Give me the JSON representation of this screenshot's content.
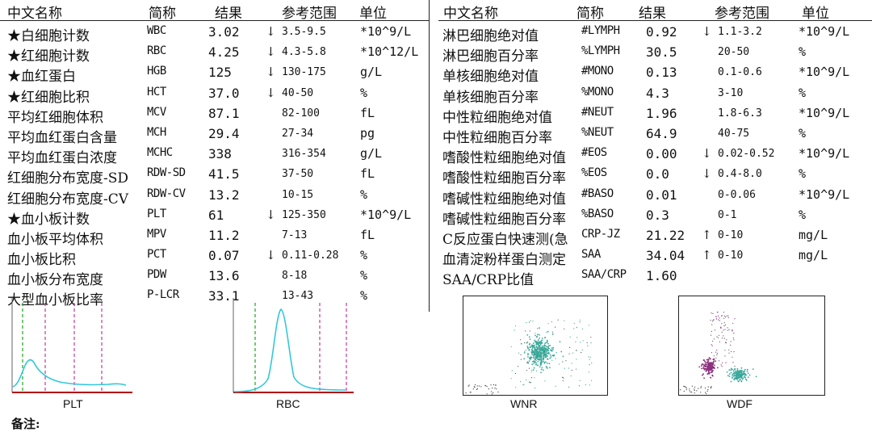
{
  "headers": {
    "name": "中文名称",
    "abbr": "简称",
    "result": "结果",
    "ref": "参考范围",
    "unit": "单位"
  },
  "left_rows": [
    {
      "name": "★白细胞计数",
      "abbr": "WBC",
      "result": "3.02",
      "flag": "↓",
      "ref": "3.5-9.5",
      "unit": "*10^9/L"
    },
    {
      "name": "★红细胞计数",
      "abbr": "RBC",
      "result": "4.25",
      "flag": "↓",
      "ref": "4.3-5.8",
      "unit": "*10^12/L"
    },
    {
      "name": "★血红蛋白",
      "abbr": "HGB",
      "result": "125",
      "flag": "↓",
      "ref": "130-175",
      "unit": "g/L"
    },
    {
      "name": "★红细胞比积",
      "abbr": "HCT",
      "result": "37.0",
      "flag": "↓",
      "ref": "40-50",
      "unit": "%"
    },
    {
      "name": "平均红细胞体积",
      "abbr": "MCV",
      "result": "87.1",
      "flag": "",
      "ref": "82-100",
      "unit": "fL"
    },
    {
      "name": "平均血红蛋白含量",
      "abbr": "MCH",
      "result": "29.4",
      "flag": "",
      "ref": "27-34",
      "unit": "pg"
    },
    {
      "name": "平均血红蛋白浓度",
      "abbr": "MCHC",
      "result": "338",
      "flag": "",
      "ref": "316-354",
      "unit": "g/L"
    },
    {
      "name": "红细胞分布宽度-SD",
      "abbr": "RDW-SD",
      "result": "41.5",
      "flag": "",
      "ref": "37-50",
      "unit": "fL"
    },
    {
      "name": "红细胞分布宽度-CV",
      "abbr": "RDW-CV",
      "result": "13.2",
      "flag": "",
      "ref": "10-15",
      "unit": "%"
    },
    {
      "name": "★血小板计数",
      "abbr": "PLT",
      "result": "61",
      "flag": "↓",
      "ref": "125-350",
      "unit": "*10^9/L"
    },
    {
      "name": "血小板平均体积",
      "abbr": "MPV",
      "result": "11.2",
      "flag": "",
      "ref": "7-13",
      "unit": "fL"
    },
    {
      "name": "血小板比积",
      "abbr": "PCT",
      "result": "0.07",
      "flag": "↓",
      "ref": "0.11-0.28",
      "unit": "%"
    },
    {
      "name": "血小板分布宽度",
      "abbr": "PDW",
      "result": "13.6",
      "flag": "",
      "ref": "8-18",
      "unit": "%"
    },
    {
      "name": "大型血小板比率",
      "abbr": "P-LCR",
      "result": "33.1",
      "flag": "",
      "ref": "13-43",
      "unit": "%"
    }
  ],
  "right_rows": [
    {
      "name": "淋巴细胞绝对值",
      "abbr": "#LYMPH",
      "result": "0.92",
      "flag": "↓",
      "ref": "1.1-3.2",
      "unit": "*10^9/L"
    },
    {
      "name": "淋巴细胞百分率",
      "abbr": "%LYMPH",
      "result": "30.5",
      "flag": "",
      "ref": "20-50",
      "unit": "%"
    },
    {
      "name": "单核细胞绝对值",
      "abbr": "#MONO",
      "result": "0.13",
      "flag": "",
      "ref": "0.1-0.6",
      "unit": "*10^9/L"
    },
    {
      "name": "单核细胞百分率",
      "abbr": "%MONO",
      "result": "4.3",
      "flag": "",
      "ref": "3-10",
      "unit": "%"
    },
    {
      "name": "中性粒细胞绝对值",
      "abbr": "#NEUT",
      "result": "1.96",
      "flag": "",
      "ref": "1.8-6.3",
      "unit": "*10^9/L"
    },
    {
      "name": "中性粒细胞百分率",
      "abbr": "%NEUT",
      "result": "64.9",
      "flag": "",
      "ref": "40-75",
      "unit": "%"
    },
    {
      "name": "嗜酸性粒细胞绝对值",
      "abbr": "#EOS",
      "result": "0.00",
      "flag": "↓",
      "ref": "0.02-0.52",
      "unit": "*10^9/L"
    },
    {
      "name": "嗜酸性粒细胞百分率",
      "abbr": "%EOS",
      "result": "0.0",
      "flag": "↓",
      "ref": "0.4-8.0",
      "unit": "%"
    },
    {
      "name": "嗜碱性粒细胞绝对值",
      "abbr": "#BASO",
      "result": "0.01",
      "flag": "",
      "ref": "0-0.06",
      "unit": "*10^9/L"
    },
    {
      "name": "嗜碱性粒细胞百分率",
      "abbr": "%BASO",
      "result": "0.3",
      "flag": "",
      "ref": "0-1",
      "unit": "%"
    },
    {
      "name": "C反应蛋白快速测(急",
      "abbr": "CRP-JZ",
      "result": "21.22",
      "flag": "↑",
      "ref": "0-10",
      "unit": "mg/L"
    },
    {
      "name": "血清淀粉样蛋白测定",
      "abbr": "SAA",
      "result": "34.04",
      "flag": "↑",
      "ref": "0-10",
      "unit": "mg/L"
    },
    {
      "name": "SAA/CRP比值",
      "abbr": "SAA/CRP",
      "result": "1.60",
      "flag": "",
      "ref": "",
      "unit": ""
    }
  ],
  "charts": [
    {
      "label": "PLT",
      "kind": "histogram"
    },
    {
      "label": "RBC",
      "kind": "histogram"
    },
    {
      "label": "WNR",
      "kind": "scatter"
    },
    {
      "label": "WDF",
      "kind": "scatter"
    }
  ],
  "colors": {
    "axis": "#b00000",
    "curve": "#33c8d8",
    "scatter_main": "#3aa89a",
    "scatter_purple": "#8a2d7a",
    "green_dash": "#2eaa2e",
    "magenta_dash": "#c03a9a"
  },
  "note": "备注:"
}
